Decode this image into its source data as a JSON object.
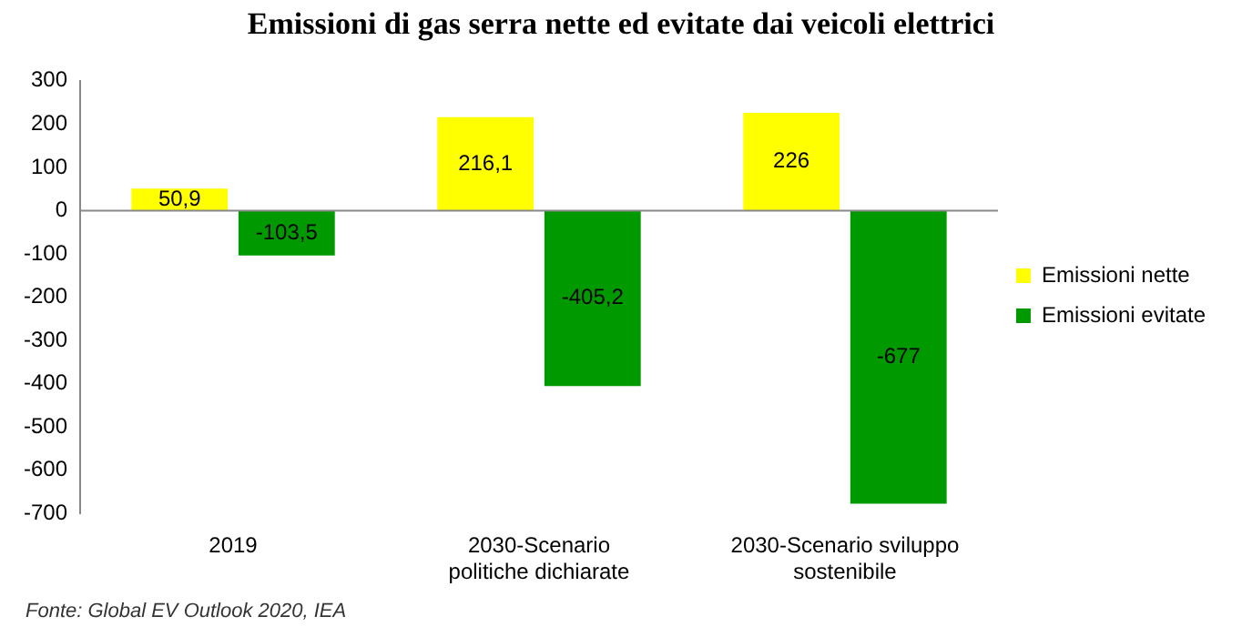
{
  "chart_data": {
    "type": "bar",
    "title": "Emissioni di gas serra nette ed evitate dai veicoli elettrici",
    "categories": [
      "2019",
      "2030-Scenario politiche dichiarate",
      "2030-Scenario sviluppo sostenibile"
    ],
    "series": [
      {
        "name": "Emissioni nette",
        "color": "#ffff00",
        "values": [
          50.9,
          216.1,
          226
        ],
        "value_labels": [
          "50,9",
          "216,1",
          "226"
        ]
      },
      {
        "name": "Emissioni evitate",
        "color": "#009900",
        "values": [
          -103.5,
          -405.2,
          -677
        ],
        "value_labels": [
          "-103,5",
          "-405,2",
          "-677"
        ]
      }
    ],
    "ylim": [
      -700,
      300
    ],
    "yticks": [
      -700,
      -600,
      -500,
      -400,
      -300,
      -200,
      -100,
      0,
      100,
      200,
      300
    ],
    "grid": false,
    "legend": "right",
    "ref_lines": [
      {
        "axis": "y",
        "value": 0,
        "color": "#888888"
      }
    ],
    "annotations": [
      "Fonte: Global EV Outlook 2020, IEA"
    ]
  }
}
